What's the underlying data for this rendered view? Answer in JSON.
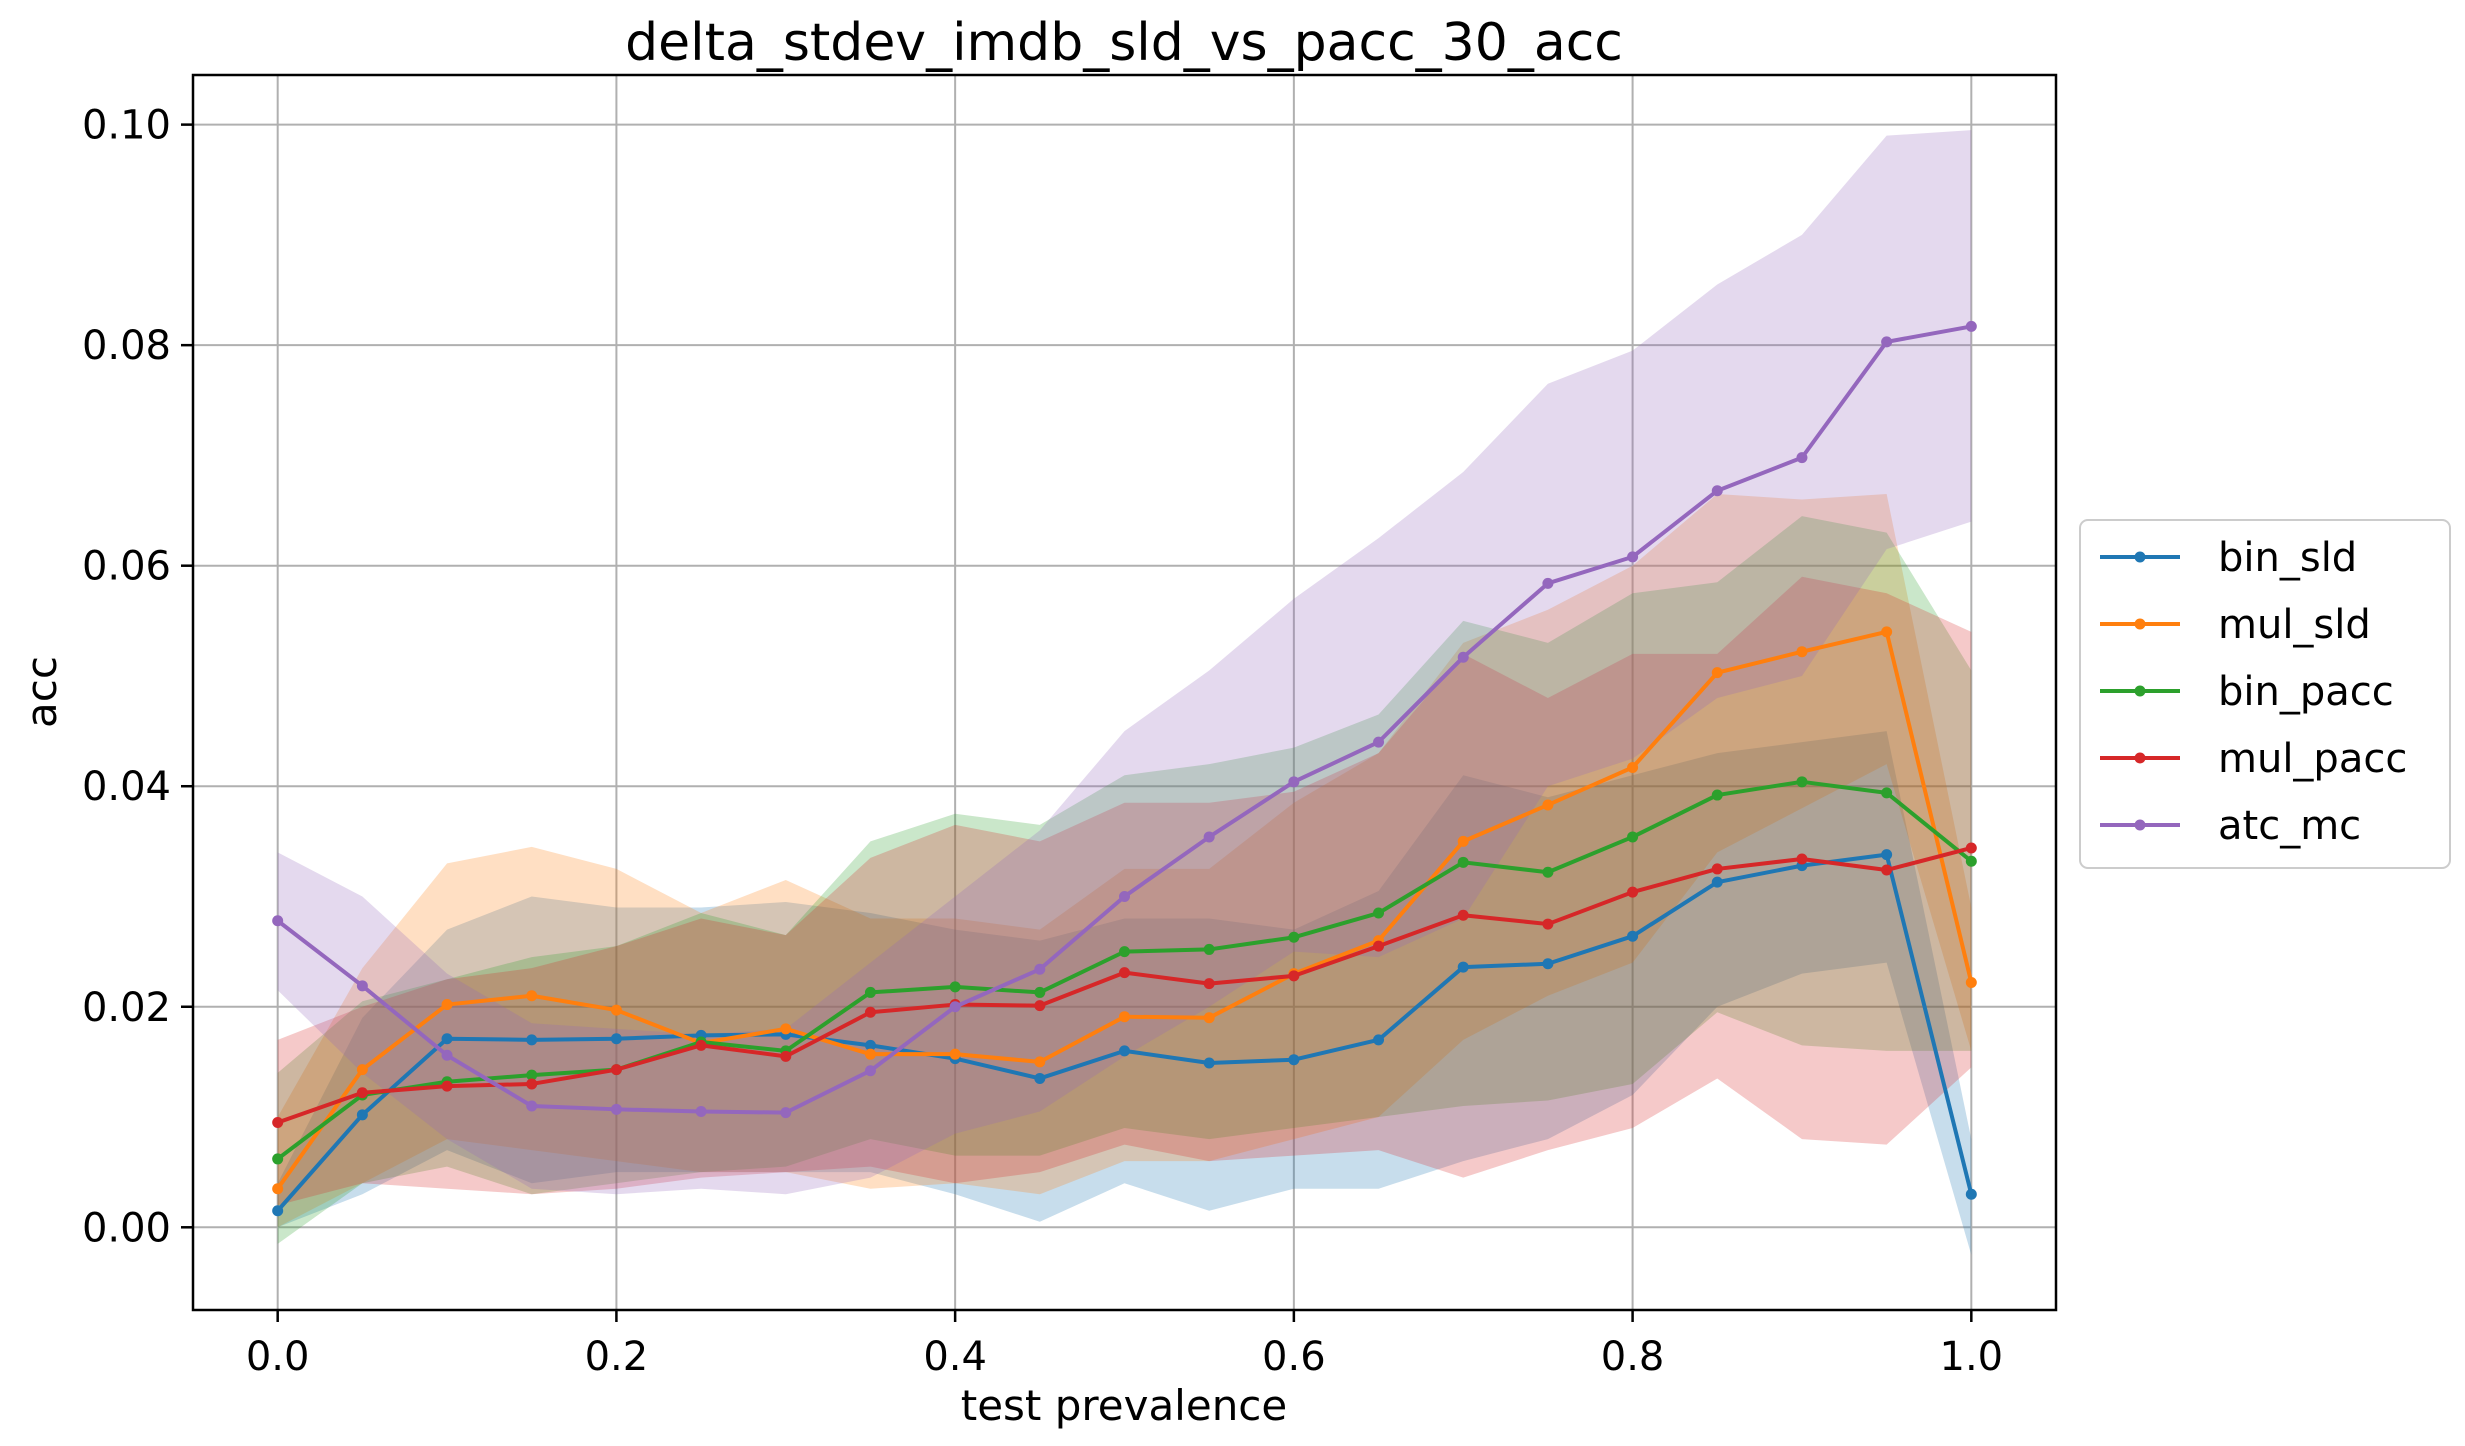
{
  "chart_data": {
    "type": "line",
    "title": "delta_stdev_imdb_sld_vs_pacc_30_acc",
    "xlabel": "test prevalence",
    "ylabel": "acc",
    "xlim": [
      -0.05,
      1.05
    ],
    "ylim": [
      -0.0075,
      0.1045
    ],
    "xticks": [
      0.0,
      0.2,
      0.4,
      0.6,
      0.8,
      1.0
    ],
    "xtick_labels": [
      "0.0",
      "0.2",
      "0.4",
      "0.6",
      "0.8",
      "1.0"
    ],
    "yticks": [
      0.0,
      0.02,
      0.04,
      0.06,
      0.08,
      0.1
    ],
    "ytick_labels": [
      "0.00",
      "0.02",
      "0.04",
      "0.06",
      "0.08",
      "0.10"
    ],
    "grid": true,
    "legend_position": "right-outside",
    "x": [
      0.0,
      0.05,
      0.1,
      0.15,
      0.2,
      0.25,
      0.3,
      0.35,
      0.4,
      0.45,
      0.5,
      0.55,
      0.6,
      0.65,
      0.7,
      0.75,
      0.8,
      0.85,
      0.9,
      0.95,
      1.0
    ],
    "series": [
      {
        "name": "bin_sld",
        "color": "#1f77b4",
        "values": [
          0.0015,
          0.0102,
          0.0171,
          0.017,
          0.0171,
          0.0174,
          0.0175,
          0.0165,
          0.0153,
          0.0135,
          0.016,
          0.0149,
          0.0152,
          0.017,
          0.0236,
          0.0239,
          0.0264,
          0.0313,
          0.0328,
          0.0338,
          0.003
        ],
        "lower": [
          0.0,
          0.003,
          0.007,
          0.004,
          0.005,
          0.005,
          0.005,
          0.005,
          0.003,
          0.0005,
          0.004,
          0.0015,
          0.0035,
          0.0035,
          0.006,
          0.008,
          0.012,
          0.02,
          0.023,
          0.024,
          -0.0025
        ],
        "upper": [
          0.004,
          0.019,
          0.027,
          0.03,
          0.029,
          0.029,
          0.0295,
          0.0285,
          0.027,
          0.026,
          0.028,
          0.028,
          0.027,
          0.0305,
          0.041,
          0.039,
          0.041,
          0.043,
          0.044,
          0.045,
          0.008
        ]
      },
      {
        "name": "mul_sld",
        "color": "#ff7f0e",
        "values": [
          0.0035,
          0.0143,
          0.0202,
          0.021,
          0.0197,
          0.0167,
          0.018,
          0.0157,
          0.0157,
          0.015,
          0.0191,
          0.019,
          0.023,
          0.026,
          0.035,
          0.0383,
          0.0417,
          0.0503,
          0.0522,
          0.054,
          0.0222
        ],
        "lower": [
          0.0,
          0.004,
          0.008,
          0.007,
          0.006,
          0.005,
          0.005,
          0.0035,
          0.004,
          0.003,
          0.006,
          0.006,
          0.008,
          0.01,
          0.017,
          0.021,
          0.024,
          0.034,
          0.038,
          0.042,
          0.016
        ],
        "upper": [
          0.01,
          0.0235,
          0.033,
          0.0345,
          0.0325,
          0.0285,
          0.0315,
          0.028,
          0.028,
          0.027,
          0.0325,
          0.0325,
          0.0385,
          0.043,
          0.053,
          0.056,
          0.06,
          0.0665,
          0.066,
          0.0665,
          0.029
        ]
      },
      {
        "name": "bin_pacc",
        "color": "#2ca02c",
        "values": [
          0.0062,
          0.012,
          0.0132,
          0.0138,
          0.0143,
          0.0168,
          0.016,
          0.0213,
          0.0218,
          0.0213,
          0.025,
          0.0252,
          0.0263,
          0.0285,
          0.0331,
          0.0322,
          0.0354,
          0.0392,
          0.0404,
          0.0394,
          0.0332
        ],
        "lower": [
          -0.0015,
          0.004,
          0.0055,
          0.003,
          0.004,
          0.005,
          0.0055,
          0.008,
          0.0065,
          0.0065,
          0.009,
          0.008,
          0.009,
          0.01,
          0.011,
          0.0115,
          0.013,
          0.0195,
          0.0165,
          0.016,
          0.016
        ],
        "upper": [
          0.014,
          0.0205,
          0.0225,
          0.0245,
          0.0255,
          0.0285,
          0.0265,
          0.035,
          0.0375,
          0.0365,
          0.041,
          0.042,
          0.0435,
          0.0465,
          0.055,
          0.053,
          0.0575,
          0.0585,
          0.0645,
          0.063,
          0.0505
        ]
      },
      {
        "name": "mul_pacc",
        "color": "#d62728",
        "values": [
          0.0095,
          0.0122,
          0.0128,
          0.013,
          0.0143,
          0.0165,
          0.0155,
          0.0195,
          0.0202,
          0.0201,
          0.0231,
          0.0221,
          0.0228,
          0.0255,
          0.0283,
          0.0275,
          0.0304,
          0.0325,
          0.0334,
          0.0324,
          0.0344
        ],
        "lower": [
          0.002,
          0.004,
          0.0035,
          0.003,
          0.0035,
          0.0045,
          0.005,
          0.0055,
          0.004,
          0.005,
          0.0075,
          0.006,
          0.0065,
          0.007,
          0.0045,
          0.007,
          0.009,
          0.0135,
          0.008,
          0.0075,
          0.0145
        ],
        "upper": [
          0.017,
          0.02,
          0.0225,
          0.0235,
          0.0255,
          0.028,
          0.0265,
          0.0335,
          0.0365,
          0.035,
          0.0385,
          0.0385,
          0.0395,
          0.043,
          0.052,
          0.048,
          0.052,
          0.052,
          0.059,
          0.0575,
          0.054
        ]
      },
      {
        "name": "atc_mc",
        "color": "#9467bd",
        "values": [
          0.0278,
          0.0219,
          0.0156,
          0.011,
          0.0107,
          0.0105,
          0.0104,
          0.0142,
          0.02,
          0.0234,
          0.03,
          0.0354,
          0.0404,
          0.044,
          0.0517,
          0.0584,
          0.0608,
          0.0668,
          0.0698,
          0.0803,
          0.0817
        ],
        "lower": [
          0.0215,
          0.014,
          0.008,
          0.0035,
          0.003,
          0.0035,
          0.003,
          0.0045,
          0.0085,
          0.0105,
          0.0155,
          0.02,
          0.025,
          0.0245,
          0.028,
          0.04,
          0.0425,
          0.048,
          0.05,
          0.0615,
          0.064
        ],
        "upper": [
          0.034,
          0.03,
          0.023,
          0.0185,
          0.018,
          0.0175,
          0.018,
          0.024,
          0.03,
          0.036,
          0.045,
          0.0505,
          0.057,
          0.0625,
          0.0685,
          0.0765,
          0.0795,
          0.0855,
          0.09,
          0.099,
          0.0995
        ]
      }
    ]
  }
}
